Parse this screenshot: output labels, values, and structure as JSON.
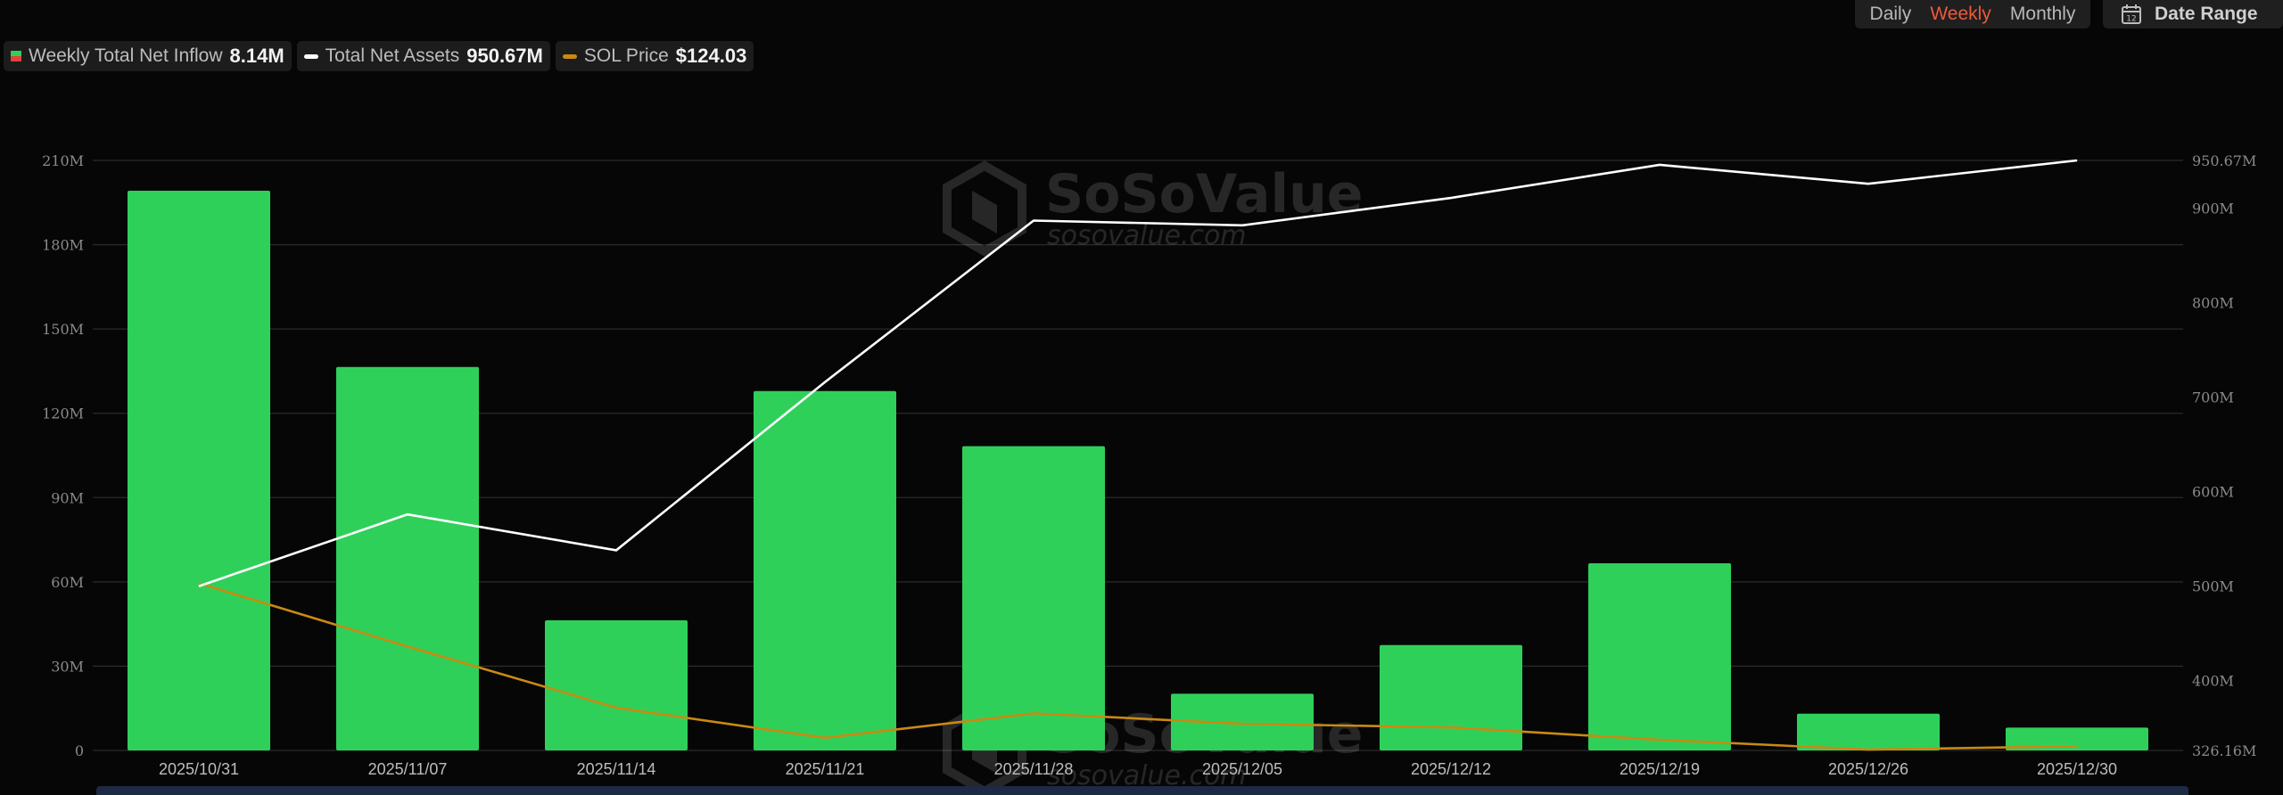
{
  "toolbar": {
    "periods": [
      "Daily",
      "Weekly",
      "Monthly"
    ],
    "active_period": "Weekly",
    "date_range_label": "Date Range",
    "date_range_icon": "calendar-icon",
    "calendar_day": "12"
  },
  "legend": [
    {
      "label": "Weekly Total Net Inflow",
      "value": "8.14M"
    },
    {
      "label": "Total Net Assets",
      "value": "950.67M"
    },
    {
      "label": "SOL Price",
      "value": "$124.03"
    }
  ],
  "watermark": {
    "brand": "SoSoValue",
    "url": "sosovalue.com"
  },
  "colors": {
    "bar_positive": "#2fd05a",
    "bar_negative": "#e2423a",
    "net_assets_line": "#ffffff",
    "sol_price_line": "#c98a12",
    "grid": "#2a2a2a",
    "active_period": "#f0583a"
  },
  "chart_data": {
    "type": "bar",
    "categories": [
      "2025/10/31",
      "2025/11/07",
      "2025/11/14",
      "2025/11/21",
      "2025/11/28",
      "2025/12/05",
      "2025/12/12",
      "2025/12/19",
      "2025/12/26",
      "2025/12/30"
    ],
    "left_axis": {
      "ticks": [
        "0",
        "30M",
        "60M",
        "90M",
        "120M",
        "150M",
        "180M",
        "210M"
      ],
      "tick_values": [
        0,
        30,
        60,
        90,
        120,
        150,
        180,
        210
      ],
      "ylim": [
        0,
        210
      ],
      "unit": "M"
    },
    "right_axis": {
      "ticks": [
        "326.16M",
        "400M",
        "500M",
        "600M",
        "700M",
        "800M",
        "900M",
        "950.67M"
      ],
      "tick_values": [
        326.16,
        400,
        500,
        600,
        700,
        800,
        900,
        950.67
      ],
      "ylim": [
        326.16,
        950.67
      ],
      "unit": "M"
    },
    "series": [
      {
        "name": "Weekly Total Net Inflow",
        "type": "bar",
        "axis": "left",
        "values": [
          199.2,
          136.5,
          46.3,
          127.9,
          108.3,
          20.2,
          37.5,
          66.6,
          13.1,
          8.14
        ]
      },
      {
        "name": "Total Net Assets",
        "type": "line",
        "axis": "right",
        "values": [
          500,
          576,
          538,
          716,
          887,
          882,
          911,
          946,
          926,
          950.67
        ]
      },
      {
        "name": "SOL Price",
        "type": "line",
        "axis": "left",
        "values": [
          59.5,
          37.0,
          15.2,
          4.5,
          13.2,
          9.5,
          8.2,
          3.8,
          0.3,
          1.5
        ]
      }
    ],
    "grid": true,
    "legend_position": "top-left"
  }
}
